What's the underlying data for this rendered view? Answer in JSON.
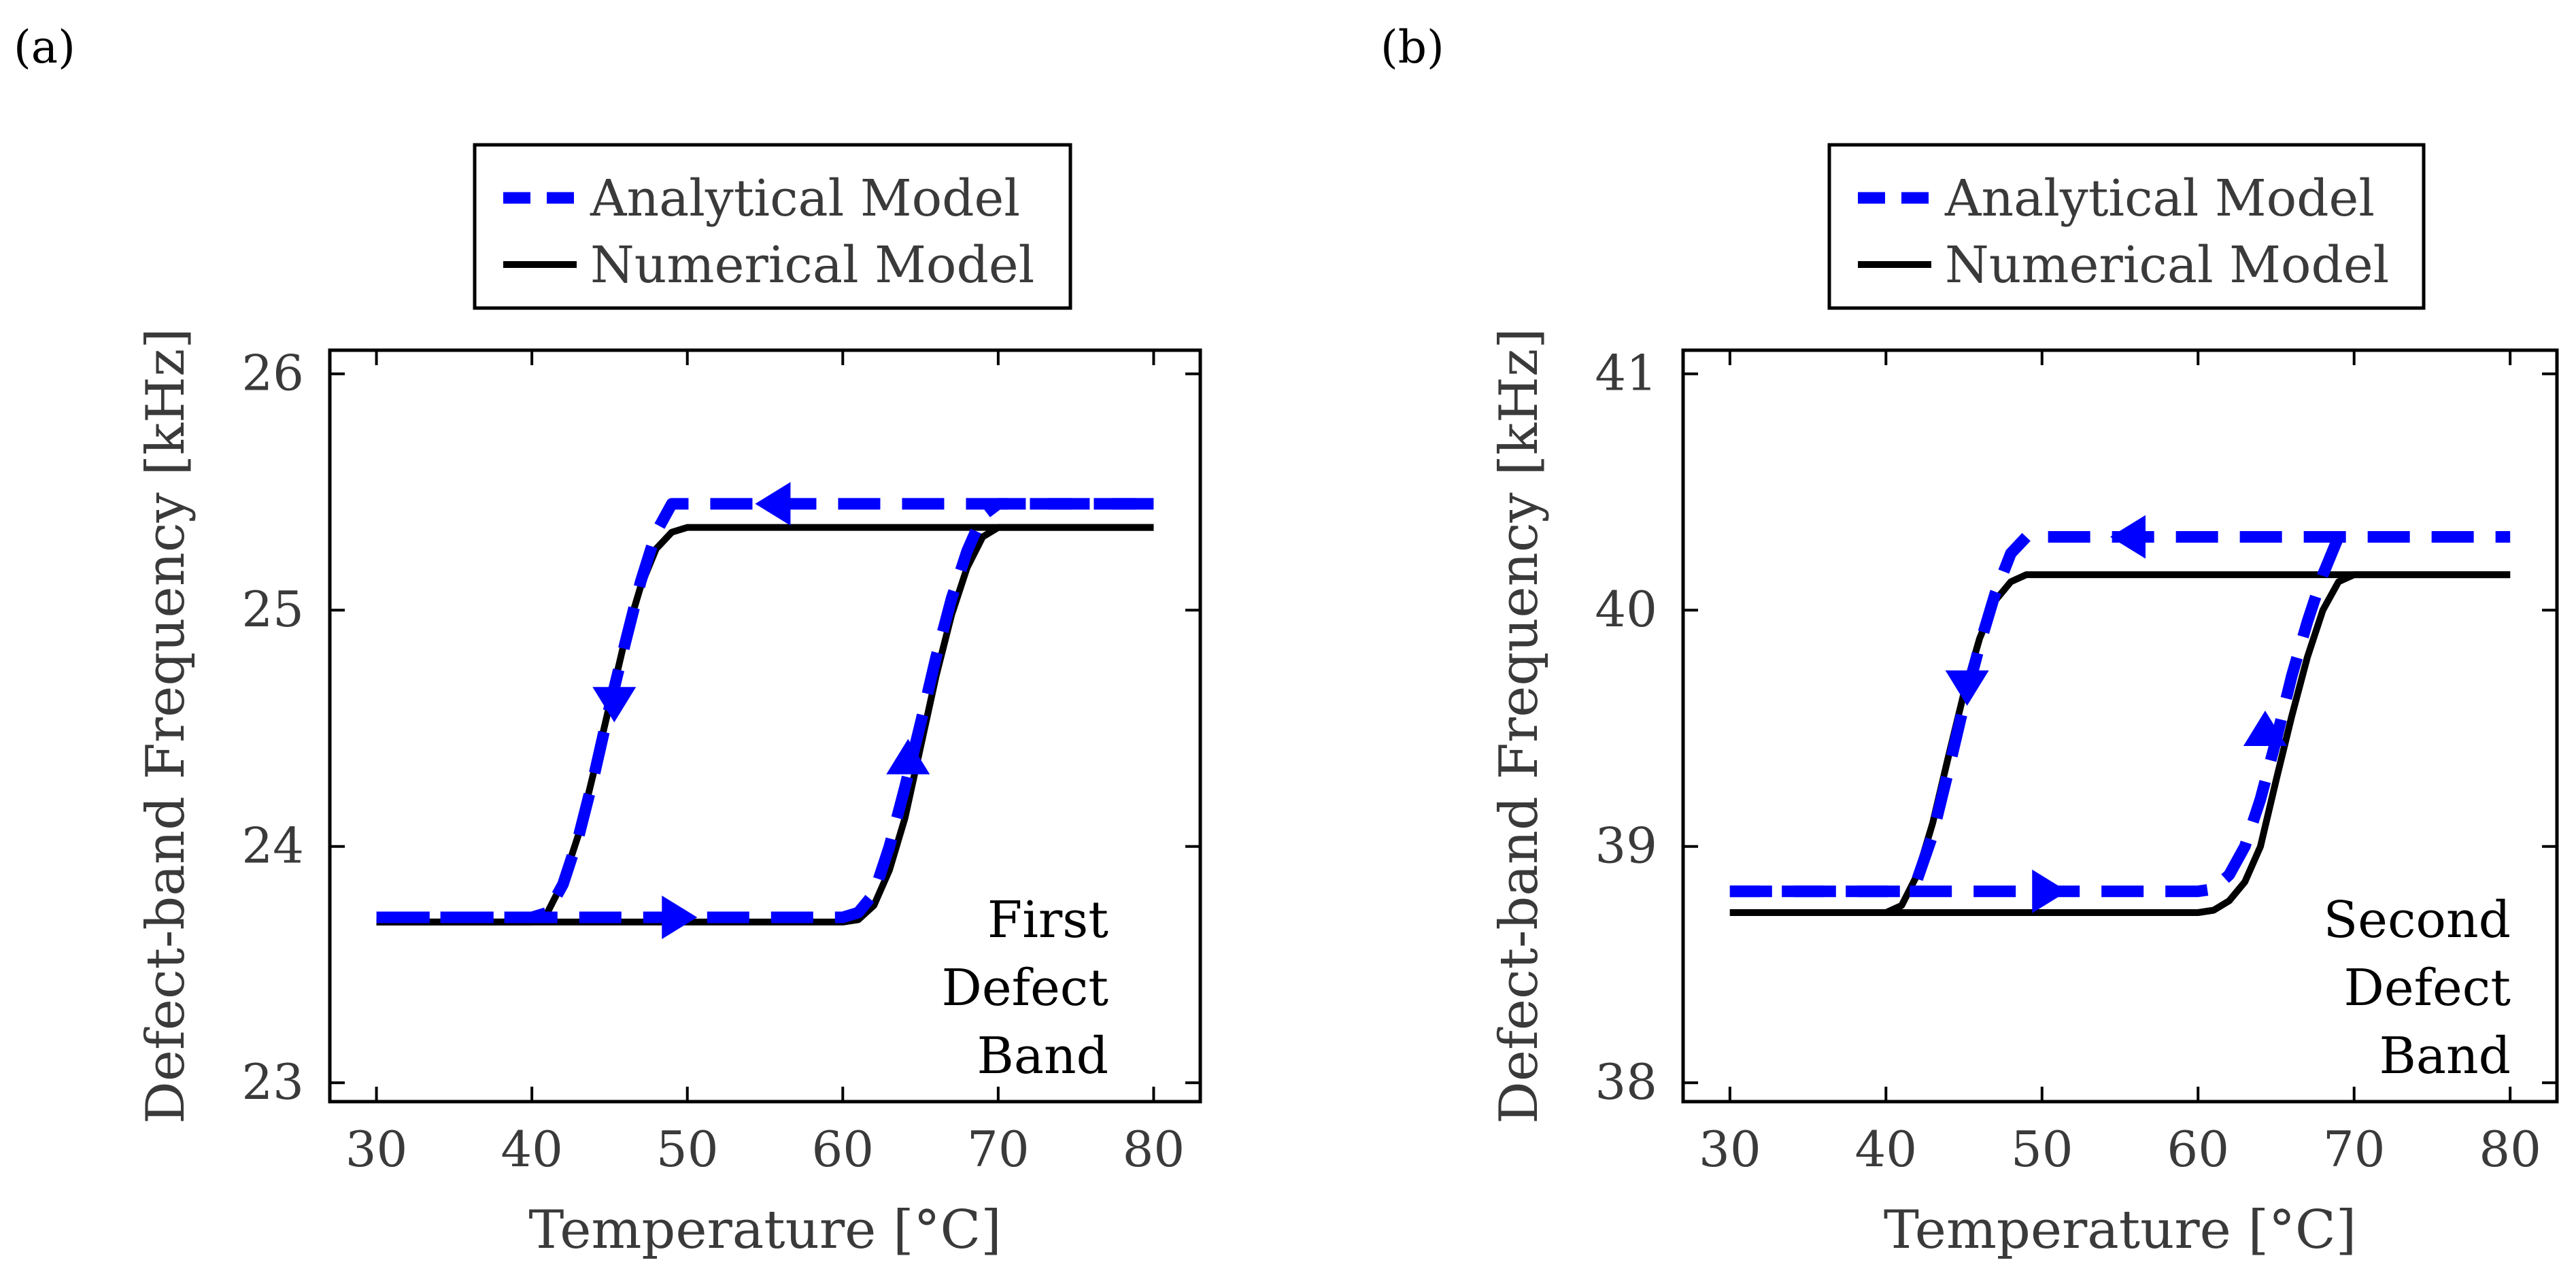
{
  "chart_data": [
    {
      "panel_label": "(a)",
      "type": "line",
      "title": "",
      "xlabel": "Temperature [°C]",
      "ylabel": "Defect-band Frequency [kHz]",
      "xlim": [
        27,
        83
      ],
      "ylim": [
        22.92,
        26.1
      ],
      "xticks": [
        30,
        40,
        50,
        60,
        70,
        80
      ],
      "yticks": [
        23,
        24,
        25,
        26
      ],
      "xtick_labels": [
        "30",
        "40",
        "50",
        "60",
        "70",
        "80"
      ],
      "ytick_labels": [
        "23",
        "24",
        "25",
        "26"
      ],
      "legend": {
        "position": "top-outside",
        "entries": [
          "Analytical Model",
          "Numerical Model"
        ]
      },
      "annotation": [
        "First",
        "Defect",
        "Band"
      ],
      "series": [
        {
          "name": "Analytical Model",
          "color": "#0000ff",
          "style": "dashed",
          "x": [
            30,
            40,
            41,
            42,
            43,
            44,
            45,
            46,
            47,
            48,
            49,
            50,
            60,
            70,
            80
          ],
          "y": [
            23.7,
            23.7,
            23.72,
            23.84,
            24.04,
            24.3,
            24.59,
            24.86,
            25.12,
            25.33,
            25.45,
            25.45,
            25.45,
            25.45,
            25.45
          ],
          "return_x": [
            80,
            70,
            69,
            68,
            67,
            66,
            65,
            64,
            63,
            62,
            61,
            60,
            50,
            40,
            30
          ],
          "return_y": [
            25.45,
            25.45,
            25.4,
            25.25,
            25.05,
            24.8,
            24.52,
            24.25,
            24.0,
            23.8,
            23.72,
            23.7,
            23.7,
            23.7,
            23.7
          ],
          "arrows": [
            {
              "x": 55.5,
              "y": 25.45,
              "direction": "left"
            },
            {
              "x": 45.3,
              "y": 24.6,
              "direction": "down"
            },
            {
              "x": 64.2,
              "y": 24.38,
              "direction": "up"
            },
            {
              "x": 49.5,
              "y": 23.7,
              "direction": "right"
            }
          ]
        },
        {
          "name": "Numerical Model",
          "color": "#000000",
          "style": "solid",
          "x": [
            30,
            40,
            41,
            42,
            43,
            44,
            45,
            46,
            47,
            48,
            49,
            50,
            80
          ],
          "y": [
            23.68,
            23.68,
            23.72,
            23.85,
            24.05,
            24.32,
            24.6,
            24.88,
            25.1,
            25.26,
            25.33,
            25.35,
            25.35
          ],
          "return_x": [
            80,
            70,
            69,
            68,
            67,
            66,
            65,
            64,
            63,
            62,
            61,
            60,
            30
          ],
          "return_y": [
            25.35,
            25.35,
            25.31,
            25.18,
            24.98,
            24.72,
            24.42,
            24.12,
            23.9,
            23.75,
            23.69,
            23.68,
            23.68
          ]
        }
      ]
    },
    {
      "panel_label": "(b)",
      "type": "line",
      "title": "",
      "xlabel": "Temperature [°C]",
      "ylabel": "Defect-band Frequency [kHz]",
      "xlim": [
        27,
        83
      ],
      "ylim": [
        37.92,
        41.1
      ],
      "xticks": [
        30,
        40,
        50,
        60,
        70,
        80
      ],
      "yticks": [
        38,
        39,
        40,
        41
      ],
      "xtick_labels": [
        "30",
        "40",
        "50",
        "60",
        "70",
        "80"
      ],
      "ytick_labels": [
        "38",
        "39",
        "40",
        "41"
      ],
      "legend": {
        "position": "top-outside",
        "entries": [
          "Analytical Model",
          "Numerical Model"
        ]
      },
      "annotation": [
        "Second",
        "Defect",
        "Band"
      ],
      "series": [
        {
          "name": "Analytical Model",
          "color": "#0000ff",
          "style": "dashed",
          "x": [
            30,
            41,
            42,
            43,
            44,
            45,
            46,
            47,
            48,
            49,
            50,
            60,
            68,
            69,
            80
          ],
          "y": [
            38.81,
            38.81,
            38.86,
            39.05,
            39.32,
            39.6,
            39.85,
            40.07,
            40.24,
            40.31,
            40.31,
            40.31,
            40.31,
            40.31,
            40.31
          ],
          "return_x": [
            69,
            68,
            67,
            66,
            65,
            64,
            63,
            62,
            61,
            60,
            50,
            30
          ],
          "return_y": [
            40.31,
            40.15,
            39.95,
            39.72,
            39.45,
            39.2,
            39.0,
            38.88,
            38.82,
            38.81,
            38.81,
            38.81
          ],
          "arrows": [
            {
              "x": 55.5,
              "y": 40.31,
              "direction": "left"
            },
            {
              "x": 45.2,
              "y": 39.67,
              "direction": "down"
            },
            {
              "x": 64.3,
              "y": 39.5,
              "direction": "up"
            },
            {
              "x": 50.5,
              "y": 38.81,
              "direction": "right"
            }
          ]
        },
        {
          "name": "Numerical Model",
          "color": "#000000",
          "style": "solid",
          "x": [
            30,
            40,
            41,
            42,
            43,
            44,
            45,
            46,
            47,
            48,
            49,
            50,
            80
          ],
          "y": [
            38.72,
            38.72,
            38.75,
            38.88,
            39.1,
            39.38,
            39.65,
            39.88,
            40.04,
            40.12,
            40.15,
            40.15,
            40.15
          ],
          "return_x": [
            80,
            70,
            69,
            68,
            67,
            66,
            65,
            64,
            63,
            62,
            61,
            60,
            30
          ],
          "return_y": [
            40.15,
            40.15,
            40.12,
            40.0,
            39.8,
            39.55,
            39.28,
            39.0,
            38.85,
            38.77,
            38.73,
            38.72,
            38.72
          ]
        }
      ]
    }
  ]
}
